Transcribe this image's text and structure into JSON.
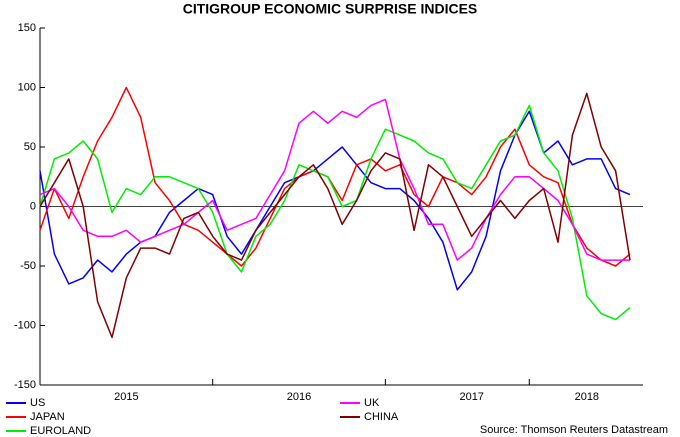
{
  "chart_data": {
    "type": "line",
    "title": "CITIGROUP ECONOMIC SURPRISE INDICES",
    "source": "Source: Thomson Reuters Datastream",
    "categories": [
      null,
      null,
      null,
      null,
      null,
      null,
      "2015",
      null,
      null,
      null,
      null,
      null,
      null,
      null,
      null,
      null,
      null,
      null,
      "2016",
      null,
      null,
      null,
      null,
      null,
      null,
      null,
      null,
      null,
      null,
      null,
      "2017",
      null,
      null,
      null,
      null,
      null,
      null,
      null,
      "2018",
      null,
      null,
      null
    ],
    "ylim": [
      -150,
      150
    ],
    "yticks": [
      -150,
      -100,
      -50,
      0,
      50,
      100,
      150
    ],
    "zero_line": true,
    "series": [
      {
        "name": "US",
        "color": "#0000ff",
        "values": [
          30,
          -40,
          -65,
          -60,
          -45,
          -55,
          -40,
          -30,
          -25,
          -5,
          5,
          15,
          10,
          -25,
          -40,
          -20,
          0,
          20,
          25,
          30,
          40,
          50,
          35,
          20,
          15,
          15,
          5,
          -10,
          -30,
          -70,
          -55,
          -25,
          30,
          60,
          80,
          45,
          55,
          35,
          40,
          40,
          15,
          10
        ]
      },
      {
        "name": "JAPAN",
        "color": "#ff0000",
        "values": [
          -20,
          15,
          -10,
          25,
          55,
          75,
          100,
          75,
          20,
          5,
          -15,
          -20,
          -30,
          -40,
          -50,
          -35,
          -10,
          15,
          25,
          30,
          25,
          5,
          35,
          40,
          30,
          35,
          10,
          0,
          25,
          20,
          10,
          25,
          50,
          65,
          35,
          25,
          20,
          -15,
          -35,
          -45,
          -50,
          -40
        ]
      },
      {
        "name": "EUROLAND",
        "color": "#00ee00",
        "values": [
          0,
          40,
          45,
          55,
          40,
          -5,
          15,
          10,
          25,
          25,
          20,
          15,
          -5,
          -40,
          -55,
          -25,
          -15,
          5,
          35,
          30,
          25,
          0,
          5,
          40,
          65,
          60,
          55,
          45,
          40,
          20,
          15,
          35,
          55,
          60,
          85,
          45,
          30,
          -10,
          -75,
          -90,
          -95,
          -85
        ]
      },
      {
        "name": "UK",
        "color": "#ff00ff",
        "values": [
          10,
          15,
          0,
          -20,
          -25,
          -25,
          -20,
          -30,
          -25,
          -20,
          -15,
          -5,
          5,
          -20,
          -15,
          -10,
          10,
          30,
          70,
          80,
          70,
          80,
          75,
          85,
          90,
          40,
          15,
          -15,
          -15,
          -45,
          -35,
          -10,
          10,
          25,
          25,
          15,
          5,
          -15,
          -40,
          -45,
          -45,
          -45
        ]
      },
      {
        "name": "CHINA",
        "color": "#800000",
        "values": [
          0,
          20,
          40,
          0,
          -80,
          -110,
          -60,
          -35,
          -35,
          -40,
          -10,
          -5,
          -25,
          -40,
          -45,
          -20,
          -5,
          10,
          25,
          35,
          15,
          -15,
          5,
          30,
          45,
          40,
          -20,
          35,
          25,
          0,
          -25,
          -10,
          5,
          -10,
          5,
          15,
          -30,
          60,
          95,
          50,
          30,
          -45
        ]
      }
    ]
  }
}
